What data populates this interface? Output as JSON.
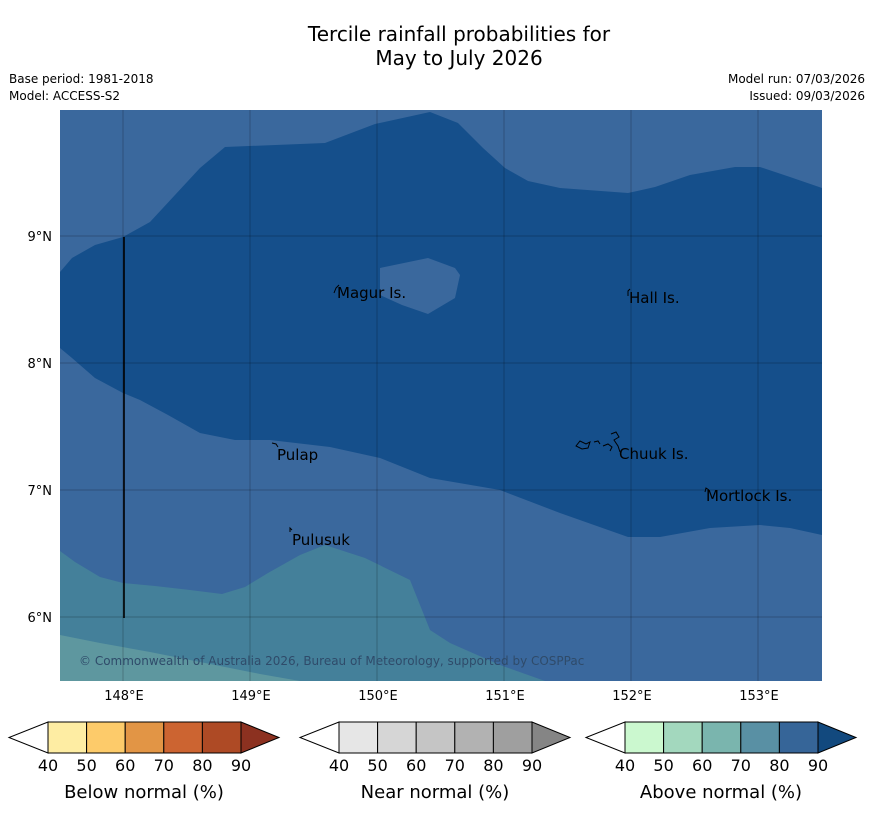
{
  "header": {
    "title_line1": "Tercile rainfall probabilities for",
    "title_line2": "May to July 2026",
    "base_period": "Base period: 1981-2018",
    "model": "Model: ACCESS-S2",
    "model_run": "Model run: 07/03/2026",
    "issued": "Issued: 09/03/2026"
  },
  "map": {
    "lat_labels": [
      "9°N",
      "8°N",
      "7°N",
      "6°N"
    ],
    "lon_labels": [
      "148°E",
      "149°E",
      "150°E",
      "151°E",
      "152°E",
      "153°E"
    ],
    "places": [
      "Magur Is.",
      "Hall Is.",
      "Pulap",
      "Chuuk Is.",
      "Mortlock Is.",
      "Pulusuk"
    ],
    "copyright": "© Commonwealth of Australia 2026, Bureau of Meteorology, supported by COSPPac",
    "fill_colors": {
      "above_80_90": "#3a689d",
      "above_90_plus": "#154f8b",
      "above_70_80": "#44809a",
      "above_60_70": "#5e979f"
    }
  },
  "colorbars": [
    {
      "title": "Below normal (%)",
      "ticks": [
        "40",
        "50",
        "60",
        "70",
        "80",
        "90"
      ],
      "colors": [
        "#ffffff",
        "#feeda3",
        "#fdcb6a",
        "#e29545",
        "#cc6431",
        "#ae4a25",
        "#8c3120"
      ]
    },
    {
      "title": "Near normal (%)",
      "ticks": [
        "40",
        "50",
        "60",
        "70",
        "80",
        "90"
      ],
      "colors": [
        "#ffffff",
        "#e6e6e6",
        "#d6d6d6",
        "#c5c5c5",
        "#b2b2b2",
        "#9f9f9f",
        "#858585"
      ]
    },
    {
      "title": "Above normal (%)",
      "ticks": [
        "40",
        "50",
        "60",
        "70",
        "80",
        "90"
      ],
      "colors": [
        "#ffffff",
        "#cbf8cf",
        "#a3d8be",
        "#7ab5ae",
        "#5990a4",
        "#366598",
        "#12497e"
      ]
    }
  ]
}
